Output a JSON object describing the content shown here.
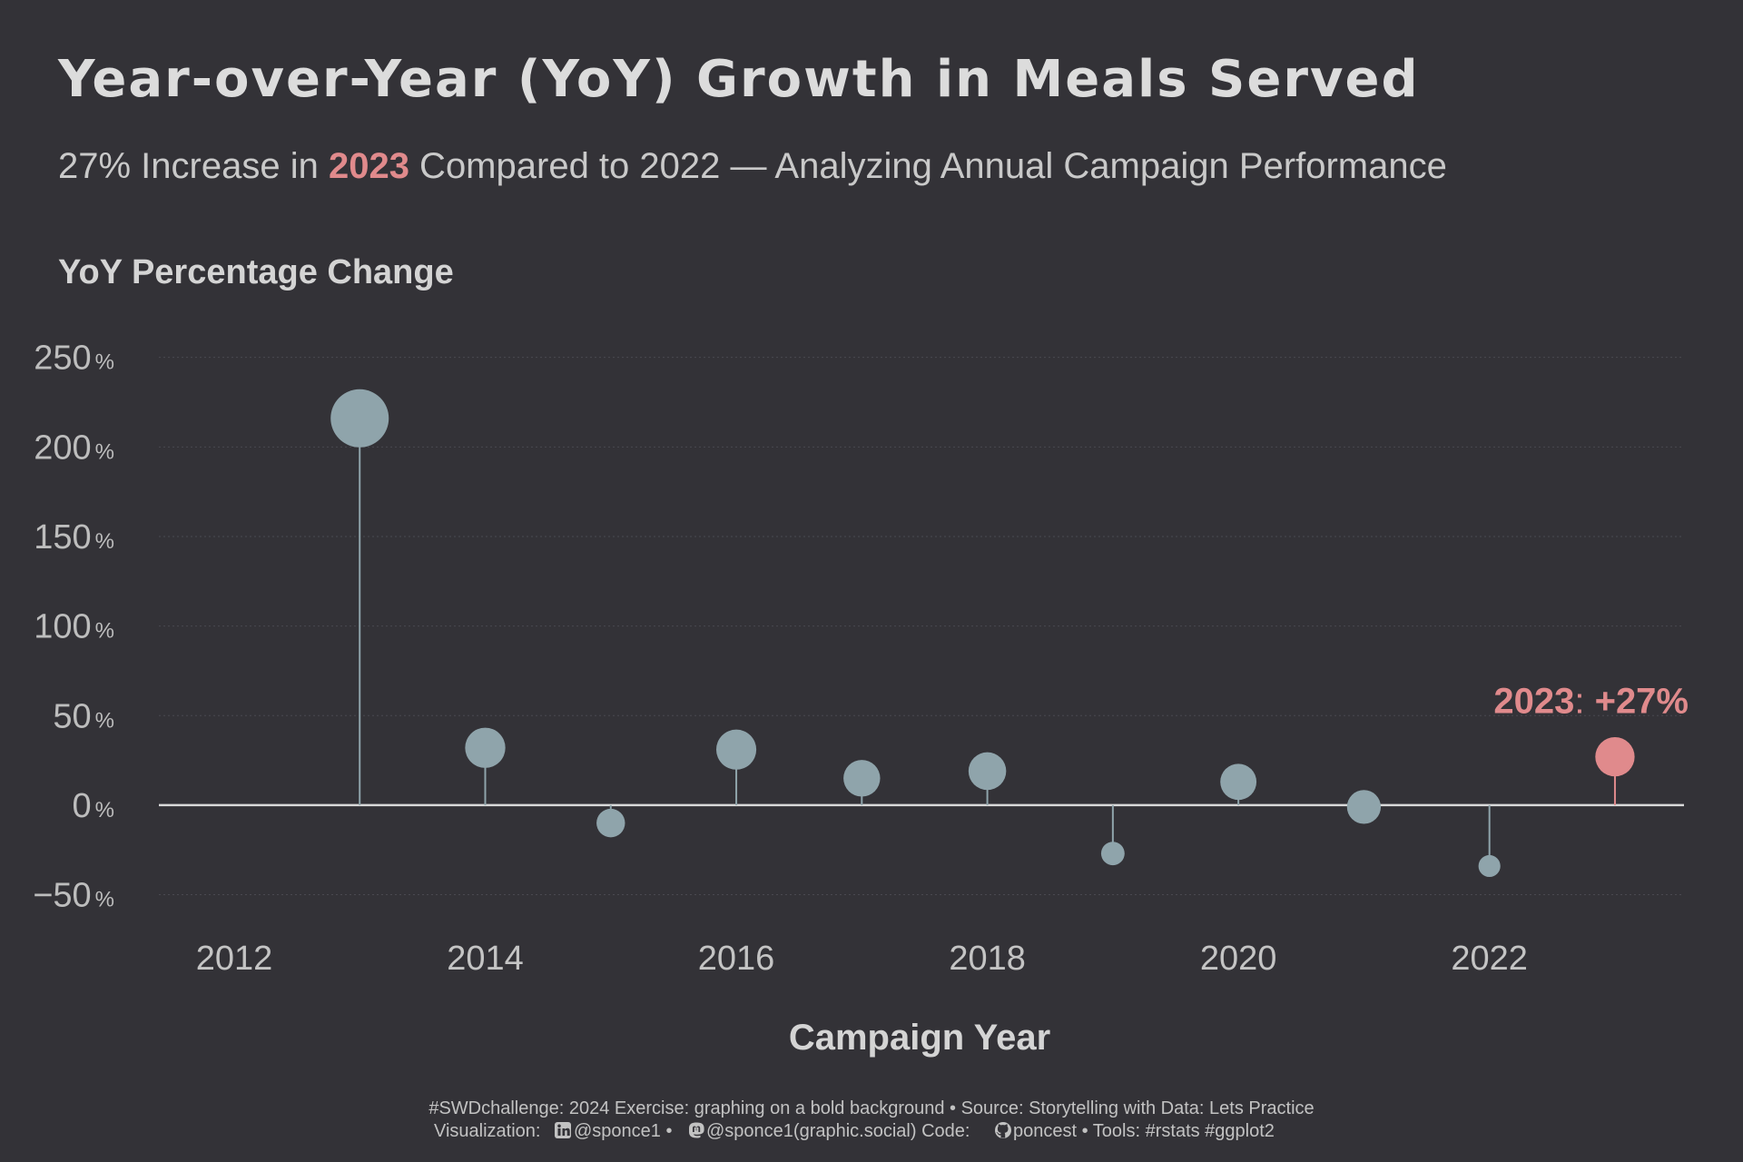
{
  "header": {
    "title": "Year-over-Year (YoY) Growth in Meals Served",
    "subtitle_before": "27% Increase in ",
    "subtitle_highlight": "2023",
    "subtitle_after": " Compared to 2022 — Analyzing Annual Campaign Performance"
  },
  "colors": {
    "background": "#333237",
    "default_point": "#8fa4ab",
    "highlight_point": "#e08a8c",
    "text": "#d9d9d9"
  },
  "chart_data": {
    "type": "scatter",
    "subtype": "lollipop",
    "ylabel": "YoY Percentage Change",
    "xlabel": "Campaign Year",
    "y_ticks": [
      -50,
      0,
      50,
      100,
      150,
      200,
      250
    ],
    "y_tick_unit": "%",
    "x_ticks": [
      2012,
      2014,
      2016,
      2018,
      2020,
      2022
    ],
    "xlim": [
      2011.4,
      2023.55
    ],
    "ylim": [
      -70,
      262
    ],
    "grid": "horizontal dotted",
    "highlight_year": 2023,
    "points": [
      {
        "x": 2013,
        "y": 216
      },
      {
        "x": 2014,
        "y": 32
      },
      {
        "x": 2015,
        "y": -10
      },
      {
        "x": 2016,
        "y": 31
      },
      {
        "x": 2017,
        "y": 15
      },
      {
        "x": 2018,
        "y": 19
      },
      {
        "x": 2019,
        "y": -27
      },
      {
        "x": 2020,
        "y": 13
      },
      {
        "x": 2021,
        "y": -1
      },
      {
        "x": 2022,
        "y": -34
      },
      {
        "x": 2023,
        "y": 27
      }
    ],
    "annotation": {
      "year": "2023",
      "sep": ": ",
      "value": "+27%"
    }
  },
  "caption": {
    "line1": "#SWDchallenge: 2024 Exercise: graphing on a bold background • Source: Storytelling with Data: Lets Practice",
    "line2_visualization": "Visualization:",
    "linkedin_handle": " @sponce1 • ",
    "mastodon_handle": " @sponce1(graphic.social) Code: ",
    "github_handle": " poncest • Tools: #rstats #ggplot2",
    "icons": [
      "linkedin-icon",
      "mastodon-icon",
      "github-icon"
    ]
  }
}
